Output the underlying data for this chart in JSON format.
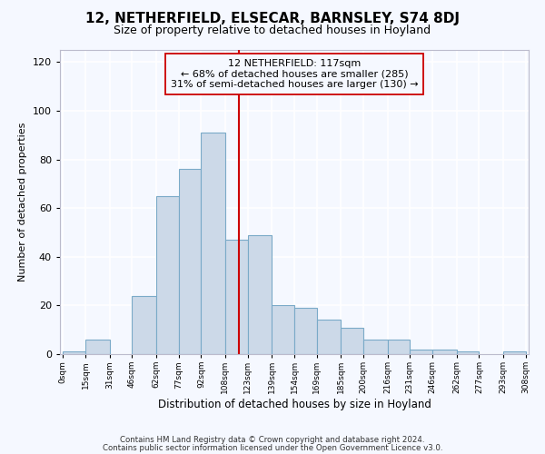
{
  "title": "12, NETHERFIELD, ELSECAR, BARNSLEY, S74 8DJ",
  "subtitle": "Size of property relative to detached houses in Hoyland",
  "xlabel": "Distribution of detached houses by size in Hoyland",
  "ylabel": "Number of detached properties",
  "bar_color": "#ccd9e8",
  "bar_edge_color": "#7aaac8",
  "background_color": "#f5f8ff",
  "vline_x": 117,
  "vline_color": "#cc0000",
  "annotation_line1": "12 NETHERFIELD: 117sqm",
  "annotation_line2": "← 68% of detached houses are smaller (285)",
  "annotation_line3": "31% of semi-detached houses are larger (130) →",
  "bins_left": [
    0,
    15,
    31,
    46,
    62,
    77,
    92,
    108,
    123,
    139,
    154,
    169,
    185,
    200,
    216,
    231,
    246,
    262,
    277,
    293
  ],
  "bins_right": [
    15,
    31,
    46,
    62,
    77,
    92,
    108,
    123,
    139,
    154,
    169,
    185,
    200,
    216,
    231,
    246,
    262,
    277,
    293,
    308
  ],
  "heights": [
    1,
    6,
    0,
    24,
    65,
    76,
    91,
    47,
    49,
    20,
    19,
    14,
    11,
    6,
    6,
    2,
    2,
    1,
    0,
    1
  ],
  "ylim": [
    0,
    125
  ],
  "yticks": [
    0,
    20,
    40,
    60,
    80,
    100,
    120
  ],
  "tick_positions": [
    0,
    15,
    31,
    46,
    62,
    77,
    92,
    108,
    123,
    139,
    154,
    169,
    185,
    200,
    216,
    231,
    246,
    262,
    277,
    293,
    308
  ],
  "tick_labels": [
    "0sqm",
    "15sqm",
    "31sqm",
    "46sqm",
    "62sqm",
    "77sqm",
    "92sqm",
    "108sqm",
    "123sqm",
    "139sqm",
    "154sqm",
    "169sqm",
    "185sqm",
    "200sqm",
    "216sqm",
    "231sqm",
    "246sqm",
    "262sqm",
    "277sqm",
    "293sqm",
    "308sqm"
  ],
  "footer_line1": "Contains HM Land Registry data © Crown copyright and database right 2024.",
  "footer_line2": "Contains public sector information licensed under the Open Government Licence v3.0."
}
